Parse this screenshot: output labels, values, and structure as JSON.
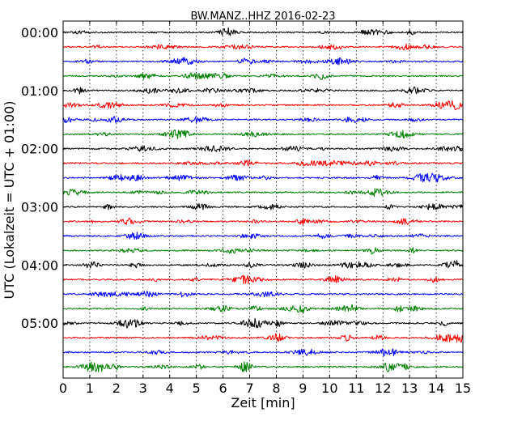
{
  "chart_data": {
    "type": "line",
    "title": "BW.MANZ..HHZ 2016-02-23",
    "xlabel": "Zeit  [min]",
    "ylabel": "UTC (Lokalzeit = UTC + 01:00)",
    "xlim": [
      0,
      15
    ],
    "x_ticks": [
      "0",
      "1",
      "2",
      "3",
      "4",
      "5",
      "6",
      "7",
      "8",
      "9",
      "10",
      "11",
      "12",
      "13",
      "14",
      "15"
    ],
    "y_ticks": [
      "00:00",
      "01:00",
      "02:00",
      "03:00",
      "04:00",
      "05:00"
    ],
    "grid": "vertical dotted at each minute",
    "colors": [
      "#000000",
      "#ff0000",
      "#0000ff",
      "#008000"
    ],
    "series": [
      {
        "start": "00:00",
        "color": "#000000"
      },
      {
        "start": "00:15",
        "color": "#ff0000"
      },
      {
        "start": "00:30",
        "color": "#0000ff"
      },
      {
        "start": "00:45",
        "color": "#008000"
      },
      {
        "start": "01:00",
        "color": "#000000"
      },
      {
        "start": "01:15",
        "color": "#ff0000"
      },
      {
        "start": "01:30",
        "color": "#0000ff"
      },
      {
        "start": "01:45",
        "color": "#008000"
      },
      {
        "start": "02:00",
        "color": "#000000"
      },
      {
        "start": "02:15",
        "color": "#ff0000"
      },
      {
        "start": "02:30",
        "color": "#0000ff"
      },
      {
        "start": "02:45",
        "color": "#008000"
      },
      {
        "start": "03:00",
        "color": "#000000"
      },
      {
        "start": "03:15",
        "color": "#ff0000"
      },
      {
        "start": "03:30",
        "color": "#0000ff"
      },
      {
        "start": "03:45",
        "color": "#008000"
      },
      {
        "start": "04:00",
        "color": "#000000"
      },
      {
        "start": "04:15",
        "color": "#ff0000"
      },
      {
        "start": "04:30",
        "color": "#0000ff"
      },
      {
        "start": "04:45",
        "color": "#008000"
      },
      {
        "start": "05:00",
        "color": "#000000"
      },
      {
        "start": "05:15",
        "color": "#ff0000"
      },
      {
        "start": "05:30",
        "color": "#0000ff"
      },
      {
        "start": "05:45",
        "color": "#008000"
      }
    ]
  }
}
